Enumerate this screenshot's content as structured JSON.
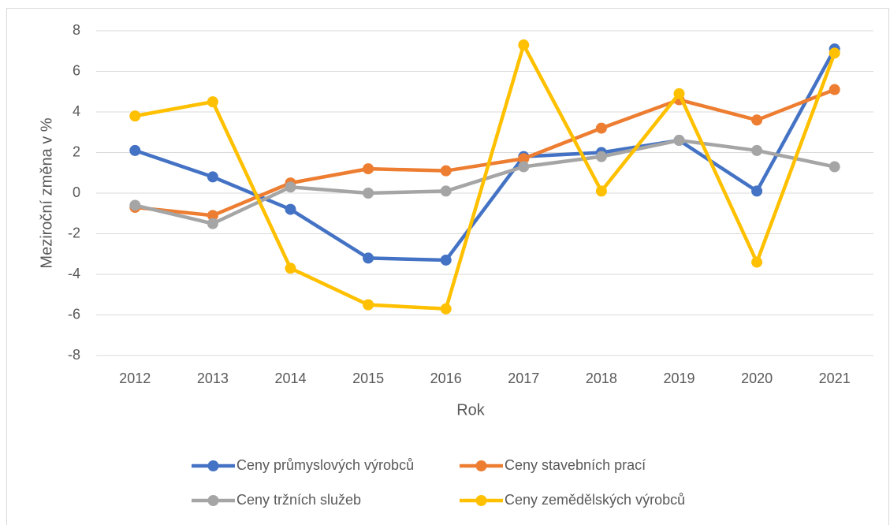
{
  "chart_data": {
    "type": "line",
    "y_label": "Meziroční změna v %",
    "x_label": "Rok",
    "categories": [
      "2012",
      "2013",
      "2014",
      "2015",
      "2016",
      "2017",
      "2018",
      "2019",
      "2020",
      "2021"
    ],
    "series": [
      {
        "name": "Ceny průmyslových výrobců",
        "color": "#4472c4",
        "values": [
          2.1,
          0.8,
          -0.8,
          -3.2,
          -3.3,
          1.8,
          2.0,
          2.6,
          0.1,
          7.1
        ]
      },
      {
        "name": "Ceny stavebních prací",
        "color": "#ed7d31",
        "values": [
          -0.7,
          -1.1,
          0.5,
          1.2,
          1.1,
          1.7,
          3.2,
          4.6,
          3.6,
          5.1
        ]
      },
      {
        "name": "Ceny tržních služeb",
        "color": "#a5a5a5",
        "values": [
          -0.6,
          -1.5,
          0.3,
          0.0,
          0.1,
          1.3,
          1.8,
          2.6,
          2.1,
          1.3
        ]
      },
      {
        "name": "Ceny zemědělských výrobců",
        "color": "#ffc000",
        "values": [
          3.8,
          4.5,
          -3.7,
          -5.5,
          -5.7,
          7.3,
          0.1,
          4.9,
          -3.4,
          6.9
        ]
      }
    ],
    "ylim": [
      -8,
      8
    ],
    "yticks": [
      -8,
      -6,
      -4,
      -2,
      0,
      2,
      4,
      6,
      8
    ],
    "grid": true,
    "legend": "bottom"
  }
}
